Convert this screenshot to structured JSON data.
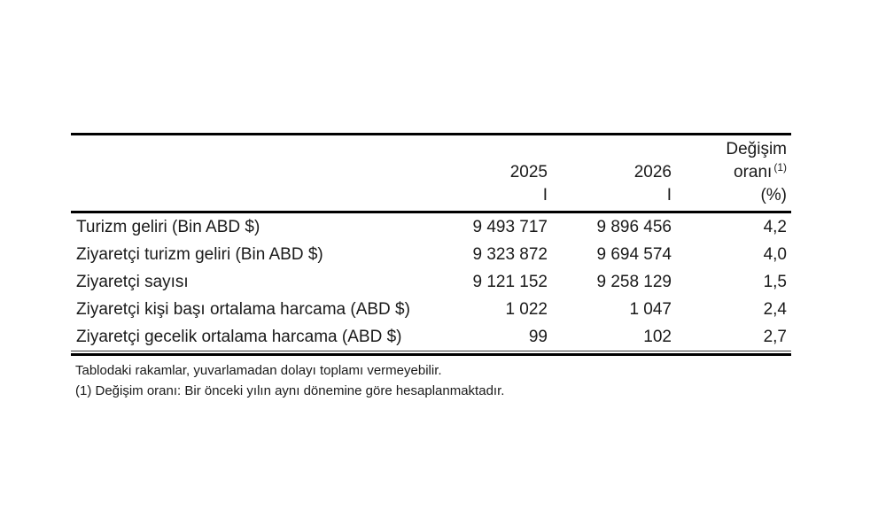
{
  "table": {
    "header": {
      "change_line1": "Değişim",
      "year_2025": "2025",
      "year_2026": "2026",
      "change_line2": "oranı",
      "change_sup": "(1)",
      "period_2025": "I",
      "period_2026": "I",
      "change_unit": "(%)"
    },
    "rows": [
      {
        "label": "Turizm geliri (Bin ABD $)",
        "v2025": "9 493 717",
        "v2026": "9 896 456",
        "change": "4,2"
      },
      {
        "label": "Ziyaretçi turizm geliri (Bin ABD $)",
        "v2025": "9 323 872",
        "v2026": "9 694 574",
        "change": "4,0"
      },
      {
        "label": "Ziyaretçi sayısı",
        "v2025": "9 121 152",
        "v2026": "9 258 129",
        "change": "1,5"
      },
      {
        "label": "Ziyaretçi kişi başı ortalama harcama (ABD $)",
        "v2025": "1 022",
        "v2026": "1 047",
        "change": "2,4"
      },
      {
        "label": "Ziyaretçi gecelik ortalama harcama (ABD $)",
        "v2025": "99",
        "v2026": "102",
        "change": "2,7"
      }
    ],
    "footnotes": [
      "Tablodaki rakamlar, yuvarlamadan dolayı toplamı vermeyebilir.",
      "(1) Değişim oranı: Bir önceki yılın aynı dönemine göre hesaplanmaktadır."
    ]
  },
  "colors": {
    "text": "#1a1a1a",
    "border": "#000000",
    "background": "#ffffff"
  }
}
